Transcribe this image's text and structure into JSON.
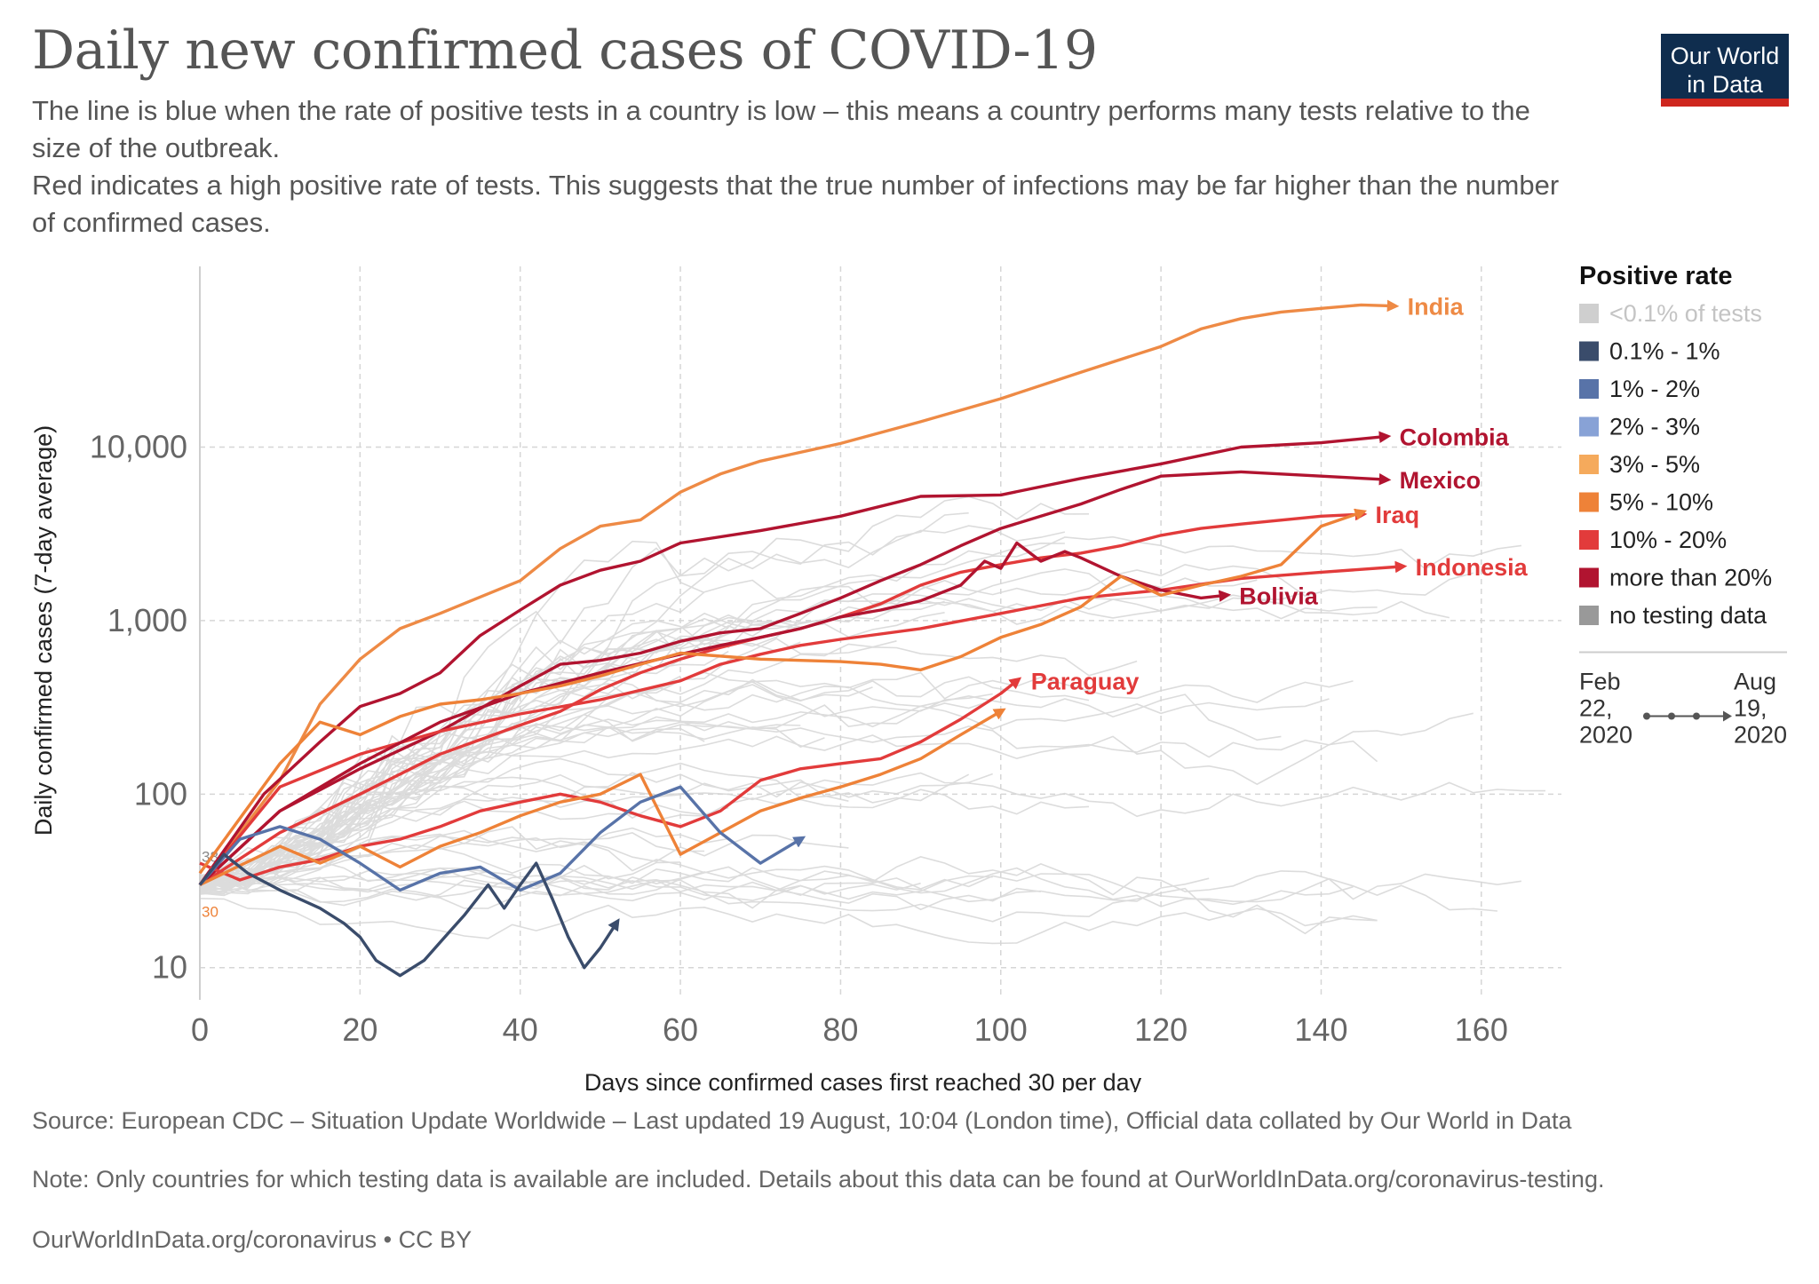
{
  "title": "Daily new confirmed cases of COVID-19",
  "subtitle_1": "The line is blue when the rate of positive tests in a country is low – this means a country performs many tests relative to the size of the outbreak.",
  "subtitle_2": "Red indicates a high positive rate of tests. This suggests that the true number of infections may be far higher than the number of confirmed cases.",
  "logo": {
    "line1": "Our World",
    "line2": "in Data"
  },
  "footer": {
    "source": "Source: European CDC – Situation Update Worldwide – Last updated 19 August, 10:04 (London time), Official data collated by Our World in Data",
    "note": "Note: Only countries for which testing data is available are included. Details about this data can be found at OurWorldInData.org/coronavirus-testing.",
    "url": "OurWorldInData.org/coronavirus • CC BY"
  },
  "chart_data": {
    "type": "line",
    "title": "Daily new confirmed cases of COVID-19",
    "xlabel": "Days since confirmed cases first reached 30 per day",
    "ylabel": "Daily confirmed cases (7-day average)",
    "yscale": "log",
    "xlim": [
      0,
      170
    ],
    "ylim": [
      7,
      110000
    ],
    "x_ticks": [
      0,
      20,
      40,
      60,
      80,
      100,
      120,
      140,
      160
    ],
    "y_ticks": [
      10,
      100,
      1000,
      10000
    ],
    "y_tick_labels": [
      "10",
      "100",
      "1,000",
      "10,000"
    ],
    "start_labels": [
      "38",
      "30"
    ],
    "legend": {
      "title": "Positive rate",
      "items": [
        {
          "label": "<0.1% of tests",
          "color": "#cfcfcf"
        },
        {
          "label": "0.1% - 1%",
          "color": "#3a4c6b"
        },
        {
          "label": "1% - 2%",
          "color": "#5873a8"
        },
        {
          "label": "2% - 3%",
          "color": "#88a2d6"
        },
        {
          "label": "3% - 5%",
          "color": "#f5aa5c"
        },
        {
          "label": "5% - 10%",
          "color": "#ee8238"
        },
        {
          "label": "10% - 20%",
          "color": "#e23b3b"
        },
        {
          "label": "more than 20%",
          "color": "#b11430"
        },
        {
          "label": "no testing data",
          "color": "#999999"
        }
      ],
      "time_start": [
        "Feb",
        "22,",
        "2020"
      ],
      "time_end": [
        "Aug",
        "19,",
        "2020"
      ]
    },
    "series": [
      {
        "name": "India",
        "color": "#ee8a45",
        "label_color": "#ee8a45",
        "points": [
          [
            0,
            30
          ],
          [
            10,
            120
          ],
          [
            15,
            330
          ],
          [
            20,
            600
          ],
          [
            25,
            900
          ],
          [
            30,
            1100
          ],
          [
            40,
            1700
          ],
          [
            45,
            2600
          ],
          [
            50,
            3500
          ],
          [
            55,
            3800
          ],
          [
            60,
            5500
          ],
          [
            65,
            7000
          ],
          [
            70,
            8300
          ],
          [
            80,
            10500
          ],
          [
            90,
            14000
          ],
          [
            100,
            19000
          ],
          [
            110,
            27000
          ],
          [
            120,
            38000
          ],
          [
            125,
            48000
          ],
          [
            130,
            55000
          ],
          [
            135,
            60000
          ],
          [
            140,
            63000
          ],
          [
            145,
            66000
          ],
          [
            149,
            65000
          ]
        ]
      },
      {
        "name": "Colombia",
        "color": "#b11430",
        "label_color": "#b11430",
        "points": [
          [
            0,
            30
          ],
          [
            8,
            100
          ],
          [
            15,
            200
          ],
          [
            20,
            320
          ],
          [
            25,
            380
          ],
          [
            30,
            500
          ],
          [
            35,
            820
          ],
          [
            40,
            1150
          ],
          [
            45,
            1600
          ],
          [
            50,
            1950
          ],
          [
            55,
            2200
          ],
          [
            60,
            2800
          ],
          [
            70,
            3300
          ],
          [
            80,
            4000
          ],
          [
            90,
            5200
          ],
          [
            100,
            5300
          ],
          [
            110,
            6600
          ],
          [
            120,
            8000
          ],
          [
            130,
            10000
          ],
          [
            140,
            10600
          ],
          [
            148,
            11500
          ]
        ]
      },
      {
        "name": "Mexico",
        "color": "#b11430",
        "label_color": "#b11430",
        "points": [
          [
            0,
            30
          ],
          [
            10,
            80
          ],
          [
            20,
            140
          ],
          [
            30,
            230
          ],
          [
            40,
            420
          ],
          [
            45,
            560
          ],
          [
            50,
            590
          ],
          [
            55,
            650
          ],
          [
            60,
            760
          ],
          [
            65,
            850
          ],
          [
            70,
            900
          ],
          [
            75,
            1100
          ],
          [
            80,
            1350
          ],
          [
            85,
            1700
          ],
          [
            90,
            2100
          ],
          [
            95,
            2700
          ],
          [
            100,
            3400
          ],
          [
            105,
            4000
          ],
          [
            110,
            4700
          ],
          [
            115,
            5700
          ],
          [
            120,
            6800
          ],
          [
            130,
            7200
          ],
          [
            140,
            6800
          ],
          [
            148,
            6500
          ]
        ]
      },
      {
        "name": "Iraq",
        "color": "#e23b3b",
        "label_color": "#e23b3b",
        "points": [
          [
            0,
            30
          ],
          [
            10,
            60
          ],
          [
            20,
            100
          ],
          [
            30,
            170
          ],
          [
            40,
            250
          ],
          [
            45,
            300
          ],
          [
            50,
            400
          ],
          [
            55,
            500
          ],
          [
            60,
            600
          ],
          [
            65,
            700
          ],
          [
            70,
            800
          ],
          [
            75,
            900
          ],
          [
            80,
            1050
          ],
          [
            85,
            1250
          ],
          [
            90,
            1600
          ],
          [
            95,
            1900
          ],
          [
            100,
            2100
          ],
          [
            105,
            2300
          ],
          [
            110,
            2450
          ],
          [
            115,
            2700
          ],
          [
            120,
            3100
          ],
          [
            125,
            3400
          ],
          [
            130,
            3600
          ],
          [
            140,
            4000
          ],
          [
            145,
            4100
          ]
        ]
      },
      {
        "name": "Indonesia",
        "color": "#e23b3b",
        "label_color": "#e23b3b",
        "points": [
          [
            0,
            30
          ],
          [
            10,
            110
          ],
          [
            20,
            170
          ],
          [
            30,
            230
          ],
          [
            40,
            290
          ],
          [
            50,
            350
          ],
          [
            60,
            450
          ],
          [
            65,
            560
          ],
          [
            70,
            640
          ],
          [
            75,
            720
          ],
          [
            80,
            780
          ],
          [
            90,
            900
          ],
          [
            100,
            1100
          ],
          [
            110,
            1350
          ],
          [
            120,
            1500
          ],
          [
            130,
            1750
          ],
          [
            140,
            1900
          ],
          [
            150,
            2050
          ]
        ]
      },
      {
        "name": "Bolivia",
        "color": "#b11430",
        "label_color": "#b11430",
        "points": [
          [
            0,
            30
          ],
          [
            10,
            80
          ],
          [
            20,
            150
          ],
          [
            30,
            260
          ],
          [
            40,
            380
          ],
          [
            50,
            500
          ],
          [
            60,
            640
          ],
          [
            65,
            720
          ],
          [
            70,
            800
          ],
          [
            75,
            900
          ],
          [
            80,
            1050
          ],
          [
            85,
            1150
          ],
          [
            90,
            1300
          ],
          [
            95,
            1600
          ],
          [
            98,
            2200
          ],
          [
            100,
            2000
          ],
          [
            102,
            2800
          ],
          [
            105,
            2200
          ],
          [
            108,
            2500
          ],
          [
            110,
            2300
          ],
          [
            115,
            1800
          ],
          [
            120,
            1500
          ],
          [
            125,
            1350
          ],
          [
            128,
            1400
          ]
        ]
      },
      {
        "name": "Paraguay",
        "color": "#e23b3b",
        "label_color": "#e23b3b",
        "points": [
          [
            0,
            40
          ],
          [
            5,
            32
          ],
          [
            10,
            38
          ],
          [
            15,
            42
          ],
          [
            20,
            50
          ],
          [
            25,
            55
          ],
          [
            30,
            65
          ],
          [
            35,
            80
          ],
          [
            40,
            90
          ],
          [
            45,
            100
          ],
          [
            50,
            90
          ],
          [
            55,
            75
          ],
          [
            60,
            65
          ],
          [
            65,
            80
          ],
          [
            70,
            120
          ],
          [
            75,
            140
          ],
          [
            80,
            150
          ],
          [
            85,
            160
          ],
          [
            90,
            200
          ],
          [
            95,
            270
          ],
          [
            100,
            380
          ],
          [
            102,
            450
          ]
        ]
      },
      {
        "name": "",
        "color": "#ee8238",
        "label_color": "#ee8238",
        "points": [
          [
            0,
            35
          ],
          [
            10,
            150
          ],
          [
            15,
            260
          ],
          [
            20,
            220
          ],
          [
            25,
            280
          ],
          [
            30,
            330
          ],
          [
            35,
            350
          ],
          [
            40,
            380
          ],
          [
            45,
            420
          ],
          [
            50,
            480
          ],
          [
            55,
            560
          ],
          [
            60,
            650
          ],
          [
            70,
            600
          ],
          [
            80,
            580
          ],
          [
            85,
            560
          ],
          [
            90,
            520
          ],
          [
            95,
            620
          ],
          [
            100,
            800
          ],
          [
            105,
            950
          ],
          [
            110,
            1200
          ],
          [
            115,
            1800
          ],
          [
            120,
            1400
          ],
          [
            125,
            1600
          ],
          [
            130,
            1800
          ],
          [
            135,
            2100
          ],
          [
            140,
            3500
          ],
          [
            145,
            4200
          ]
        ]
      },
      {
        "name": "",
        "color": "#ee8238",
        "label_color": "#ee8238",
        "points": [
          [
            0,
            30
          ],
          [
            10,
            50
          ],
          [
            15,
            40
          ],
          [
            20,
            50
          ],
          [
            25,
            38
          ],
          [
            30,
            50
          ],
          [
            35,
            60
          ],
          [
            40,
            75
          ],
          [
            45,
            90
          ],
          [
            50,
            100
          ],
          [
            55,
            130
          ],
          [
            60,
            45
          ],
          [
            65,
            60
          ],
          [
            70,
            80
          ],
          [
            75,
            95
          ],
          [
            80,
            110
          ],
          [
            85,
            130
          ],
          [
            90,
            160
          ],
          [
            95,
            220
          ],
          [
            100,
            300
          ]
        ]
      },
      {
        "name": "",
        "color": "#5873a8",
        "label_color": "#5873a8",
        "points": [
          [
            0,
            30
          ],
          [
            5,
            55
          ],
          [
            10,
            65
          ],
          [
            15,
            55
          ],
          [
            20,
            40
          ],
          [
            25,
            28
          ],
          [
            30,
            35
          ],
          [
            35,
            38
          ],
          [
            40,
            28
          ],
          [
            45,
            35
          ],
          [
            50,
            60
          ],
          [
            55,
            90
          ],
          [
            60,
            110
          ],
          [
            65,
            60
          ],
          [
            70,
            40
          ],
          [
            75,
            55
          ]
        ]
      },
      {
        "name": "",
        "color": "#3a4c6b",
        "label_color": "#3a4c6b",
        "points": [
          [
            0,
            30
          ],
          [
            3,
            45
          ],
          [
            6,
            35
          ],
          [
            10,
            28
          ],
          [
            15,
            22
          ],
          [
            18,
            18
          ],
          [
            20,
            15
          ],
          [
            22,
            11
          ],
          [
            25,
            9
          ],
          [
            28,
            11
          ],
          [
            30,
            14
          ],
          [
            33,
            20
          ],
          [
            36,
            30
          ],
          [
            38,
            22
          ],
          [
            40,
            30
          ],
          [
            42,
            40
          ],
          [
            44,
            25
          ],
          [
            46,
            15
          ],
          [
            48,
            10
          ],
          [
            50,
            13
          ],
          [
            52,
            18
          ]
        ]
      }
    ]
  }
}
